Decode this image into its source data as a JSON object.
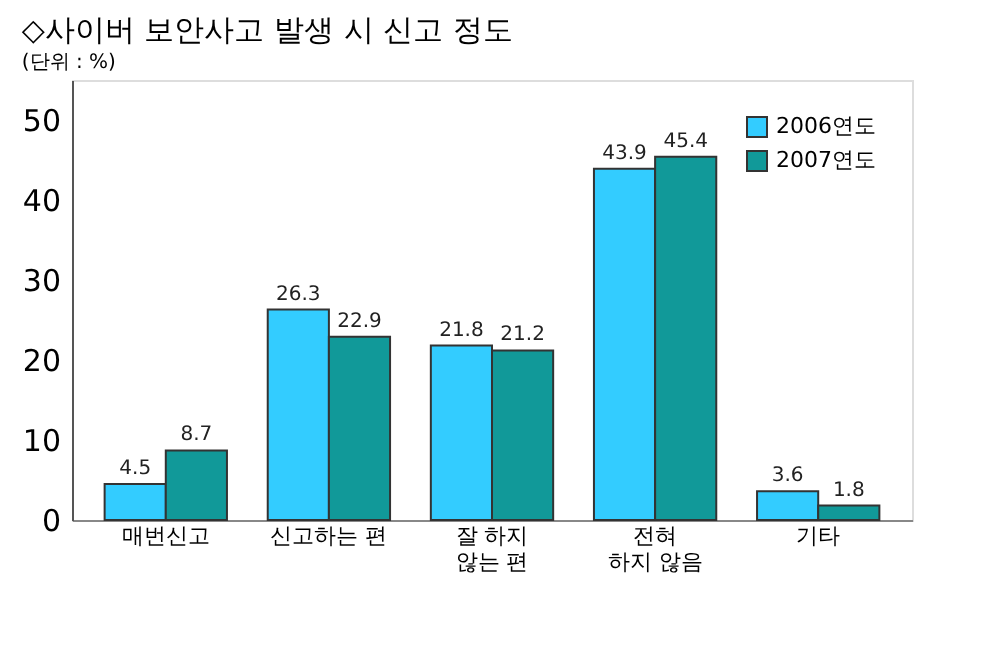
{
  "chart_data": {
    "type": "bar",
    "title": "◇사이버 보안사고 발생 시 신고 정도",
    "subtitle": "(단위 : %)",
    "categories": [
      "매번신고",
      "신고하는 편",
      "잘 하지\n않는 편",
      "전혀\n하지 않음",
      "기타"
    ],
    "series": [
      {
        "name": "2006연도",
        "color": "#33ccff",
        "values": [
          4.5,
          26.3,
          21.8,
          43.9,
          3.6
        ]
      },
      {
        "name": "2007연도",
        "color": "#119999",
        "values": [
          8.7,
          22.9,
          21.2,
          45.4,
          1.8
        ]
      }
    ],
    "ylim": [
      0,
      55
    ],
    "yticks": [
      0,
      10,
      20,
      30,
      40,
      50
    ],
    "grid": false,
    "legend": "top right",
    "data_labels": true
  }
}
